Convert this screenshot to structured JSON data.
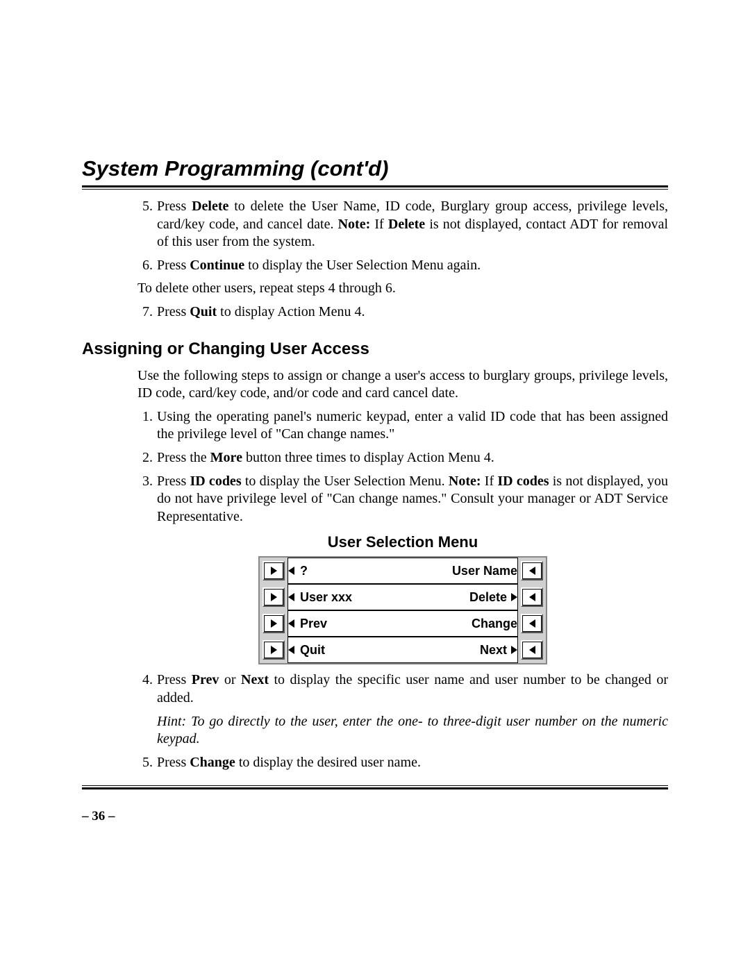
{
  "title": "System Programming (cont'd)",
  "upper_list": {
    "item5": {
      "num": "5.",
      "pre": "Press ",
      "b1": "Delete",
      "mid": " to delete the User Name, ID code, Burglary group access, privilege levels, card/key code, and cancel date. ",
      "b2": "Note:",
      "mid2": " If ",
      "b3": "Delete",
      "post": " is not displayed, contact ADT for removal of this user from the system."
    },
    "item6": {
      "num": "6.",
      "pre": "Press ",
      "b1": "Continue",
      "post": " to display the User Selection Menu again."
    },
    "plain": "To delete other users, repeat steps 4 through 6.",
    "item7": {
      "num": "7.",
      "pre": "Press ",
      "b1": "Quit",
      "post": " to display Action Menu 4."
    }
  },
  "section_heading": "Assigning or Changing User Access",
  "intro": "Use the following steps to assign or change a user's access to burglary groups, privilege levels, ID code, card/key code, and/or code and card cancel date.",
  "lower_list": {
    "item1": {
      "num": "1.",
      "text": "Using the operating panel's numeric keypad, enter a valid ID code that has been assigned the privilege level of \"Can change names.\""
    },
    "item2": {
      "num": "2.",
      "pre": "Press the ",
      "b1": "More",
      "post": " button three times to display Action Menu 4."
    },
    "item3": {
      "num": "3.",
      "pre": "Press ",
      "b1": "ID codes",
      "mid": " to display the User Selection Menu. ",
      "b2": "Note:",
      "mid2": " If ",
      "b3": "ID codes",
      "post": " is not displayed, you do not have privilege level of \"Can change names.\" Consult your manager or ADT Service Representative."
    },
    "item4": {
      "num": "4.",
      "pre": "Press ",
      "b1": "Prev",
      "mid": " or ",
      "b2": "Next",
      "post": " to display the specific user name and user number to be changed or added."
    },
    "hint": "Hint: To go directly to the user, enter the one- to three-digit user number on the numeric keypad.",
    "item5": {
      "num": "5.",
      "pre": "Press ",
      "b1": "Change",
      "post": " to display the desired user name."
    }
  },
  "menu": {
    "title": "User Selection Menu",
    "rows": [
      {
        "left_icon": "left",
        "left_text": "?",
        "right_text": "User Name",
        "right_icon": ""
      },
      {
        "left_icon": "left",
        "left_text": "User xxx",
        "right_text": "Delete",
        "right_icon": "right"
      },
      {
        "left_icon": "left",
        "left_text": "Prev",
        "right_text": "Change",
        "right_icon": ""
      },
      {
        "left_icon": "left",
        "left_text": "Quit",
        "right_text": "Next",
        "right_icon": "right"
      }
    ]
  },
  "page_number": "– 36 –"
}
